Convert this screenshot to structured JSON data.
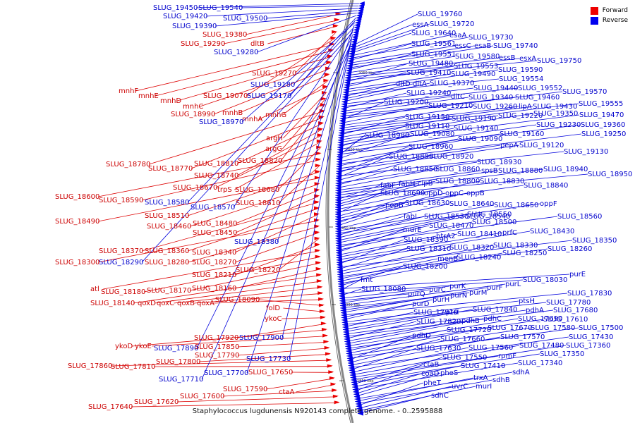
{
  "caption": "Staphylococcus lugdunensis N920143 complete genome. - 0..2595888",
  "legend": {
    "forward_label": "Forward",
    "reverse_label": "Reverse",
    "forward_color": "#ee0000",
    "reverse_color": "#0000ee"
  },
  "ticks": [
    "2050 kbp",
    "2000 kbp",
    "1950 kbp",
    "1900 kbp",
    "1850 kbp"
  ],
  "forward_genes": [
    "SLUG_19380",
    "SLUG_19290",
    "dltB",
    "SLUG_19270",
    "SLUG_19070",
    "mnhF",
    "mnhE",
    "mnhD",
    "mnhC",
    "SLUG_18990",
    "mnhB",
    "mnhG",
    "mnhA",
    "argH",
    "argG",
    "SLUG_18820",
    "SLUG_18780",
    "SLUG_18770",
    "SLUG_18810",
    "SLUG_18740",
    "SLUG_18670",
    "trpS",
    "SLUG_18680",
    "SLUG_18600",
    "SLUG_18590",
    "SLUG_18610",
    "SLUG_18510",
    "SLUG_18490",
    "SLUG_18460",
    "SLUG_18480",
    "SLUG_18450",
    "SLUG_18370",
    "SLUG_18360",
    "SLUG_18340",
    "SLUG_18300",
    "SLUG_18280",
    "SLUG_18270",
    "SLUG_18220",
    "SLUG_18210",
    "atl",
    "SLUG_18180",
    "SLUG_18170",
    "SLUG_18160",
    "SLUG_18140",
    "qoxD",
    "qoxC",
    "qoxB",
    "qoxA",
    "SLUG_18090",
    "folD",
    "ykoC",
    "SLUG_17920",
    "ykoD",
    "ykoE",
    "SLUG_17850",
    "SLUG_17790",
    "SLUG_17800",
    "SLUG_17860",
    "SLUG_17810",
    "SLUG_17650",
    "SLUG_17590",
    "ctaA",
    "SLUG_17600",
    "SLUG_17620",
    "SLUG_17640"
  ],
  "reverse_genes": [
    "SLUG_19450",
    "SLUG_19540",
    "SLUG_19420",
    "SLUG_19500",
    "SLUG_19390",
    "SLUG_19280",
    "SLUG_19180",
    "SLUG_19170",
    "SLUG_18970",
    "SLUG_18380",
    "SLUG_18580",
    "SLUG_18570",
    "SLUG_18290",
    "SLUG_17900",
    "SLUG_17890",
    "SLUG_17730",
    "SLUG_17700",
    "SLUG_17710",
    "SLUG_19760",
    "essA",
    "SLUG_19720",
    "SLUG_19640",
    "esaA",
    "SLUG_19730",
    "SLUG_19561",
    "essC",
    "esaB",
    "SLUG_19740",
    "SLUG_19551",
    "SLUG_19580",
    "essB",
    "esxA",
    "SLUG_19750",
    "SLUG_19480",
    "SLUG_19553",
    "SLUG_19410",
    "SLUG_19490",
    "SLUG_19590",
    "SLUG_19554",
    "dltD",
    "dltA",
    "SLUG_19370",
    "SLUG_19440",
    "SLUG_19552",
    "SLUG_19240",
    "dltC",
    "SLUG_19340",
    "SLUG_19460",
    "SLUG_19570",
    "SLUG_19200",
    "SLUG_19210",
    "SLUG_19260",
    "lipA",
    "SLUG_19430",
    "SLUG_19555",
    "SLUG_19150",
    "SLUG_19190",
    "SLUG_19220",
    "SLUG_19350",
    "SLUG_19470",
    "SLUG_19110",
    "SLUG_19140",
    "SLUG_19230",
    "SLUG_19360",
    "SLUG_18980",
    "SLUG_19080",
    "SLUG_19160",
    "SLUG_19250",
    "SLUG_19090",
    "pepA",
    "SLUG_19120",
    "SLUG_18960",
    "SLUG_19130",
    "SLUG_18890",
    "SLUG_18920",
    "SLUG_18930",
    "SLUG_18850",
    "SLUG_18860",
    "spsB",
    "SLUG_18880",
    "SLUG_18940",
    "SLUG_18950",
    "fabF",
    "fabH",
    "clpB",
    "SLUG_18800",
    "SLUG_18830",
    "SLUG_18840",
    "SLUG_18690",
    "oppD",
    "oppC",
    "oppB",
    "pepB",
    "SLUG_18630",
    "SLUG_18640",
    "SLUG_18650",
    "oppF",
    "fabI",
    "SLUG_18530",
    "SLUG_18550",
    "SLUG_18540",
    "SLUG_18560",
    "SLUG_18470",
    "SLUG_18500",
    "murE",
    "htrA2",
    "SLUG_18410",
    "prfC",
    "SLUG_18430",
    "SLUG_18390",
    "SLUG_18350",
    "SLUG_18310",
    "SLUG_18320",
    "SLUG_18330",
    "SLUG_18260",
    "menB",
    "SLUG_18240",
    "SLUG_18250",
    "SLUG_18200",
    "purE",
    "fmt",
    "SLUG_18030",
    "SLUG_18080",
    "purK",
    "purQ",
    "purC",
    "purL",
    "purN",
    "purM",
    "purF",
    "SLUG_17830",
    "purD",
    "purH",
    "ptsH",
    "SLUG_17780",
    "SLUG_17910",
    "ptsI",
    "SLUG_17840",
    "pdhA",
    "SLUG_17680",
    "SLUG_17820",
    "pdhB",
    "pdhC",
    "SLUG_17690",
    "SLUG_17610",
    "SLUG_17720",
    "SLUG_17670",
    "SLUG_17580",
    "SLUG_17500",
    "pdhD",
    "SLUG_17660",
    "SLUG_17570",
    "SLUG_17430",
    "SLUG_17630",
    "SLUG_17560",
    "SLUG_17480",
    "SLUG_17360",
    "rpmF",
    "SLUG_17350",
    "SLUG_17550",
    "SLUG_17410",
    "SLUG_17340",
    "ctaB",
    "coaD",
    "pheS",
    "sdhA",
    "trxA",
    "sdhB",
    "pheT",
    "uvrC",
    "murI",
    "sdhC"
  ]
}
